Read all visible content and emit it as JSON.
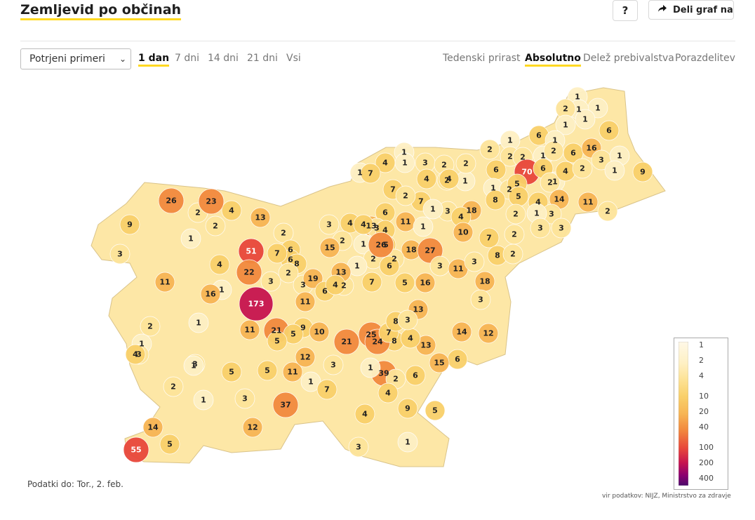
{
  "header": {
    "title": "Zemljevid po občinah",
    "help_label": "?",
    "share_label": "Deli graf na"
  },
  "controls": {
    "select_value": "Potrjeni primeri",
    "period_tabs": [
      {
        "label": "1 dan",
        "active": true
      },
      {
        "label": "7 dni",
        "active": false
      },
      {
        "label": "14 dni",
        "active": false
      },
      {
        "label": "21 dni",
        "active": false
      },
      {
        "label": "Vsi",
        "active": false
      }
    ],
    "mode_tabs": [
      {
        "label": "Tedenski prirast",
        "active": false
      },
      {
        "label": "Absolutno",
        "active": true
      },
      {
        "label": "Delež prebivalstva",
        "active": false
      },
      {
        "label": "Porazdelitev",
        "active": false
      }
    ]
  },
  "map": {
    "values": [
      1,
      1,
      1,
      2,
      1,
      1,
      2,
      1,
      6,
      1,
      2,
      2,
      1,
      2,
      6,
      6,
      16,
      3,
      1,
      1,
      9,
      1,
      1,
      3,
      2,
      4,
      2,
      4,
      1,
      4,
      2,
      6,
      70,
      6,
      1,
      2,
      4,
      2,
      1,
      7,
      7,
      7,
      2,
      1,
      2,
      5,
      5,
      8,
      4,
      14,
      2,
      3,
      1,
      11,
      2,
      3,
      3,
      3,
      4,
      13,
      18,
      3,
      4,
      6,
      26,
      2,
      2,
      4,
      23,
      13,
      2,
      1,
      3,
      3,
      4,
      4,
      11,
      1,
      18,
      10,
      7,
      2,
      9,
      2,
      1,
      5,
      2,
      2,
      27,
      3,
      1,
      13,
      8,
      2,
      6,
      51,
      15,
      6,
      26,
      11,
      3,
      18,
      22,
      7,
      8,
      2,
      3,
      11,
      4,
      1,
      6,
      19,
      3,
      2,
      6,
      13,
      5,
      1,
      11,
      173,
      16,
      7,
      3,
      13,
      8,
      4,
      2,
      1,
      25,
      9,
      11,
      10,
      21,
      24,
      12,
      14,
      21,
      39,
      4,
      7,
      5,
      8,
      5,
      3,
      1,
      3,
      4,
      5,
      5,
      11,
      12,
      3,
      3,
      1,
      1,
      2,
      6,
      1,
      16,
      7,
      4,
      9,
      2,
      1,
      3,
      37,
      6,
      5,
      15,
      12,
      4,
      1,
      3,
      14,
      55,
      5
    ],
    "legend_ticks": [
      "1",
      "2",
      "4",
      "10",
      "20",
      "40",
      "100",
      "200",
      "400"
    ],
    "color_scale": [
      "#fff8e7",
      "#fef0c4",
      "#fde49a",
      "#f9d06a",
      "#f7b554",
      "#f28a3e",
      "#e8473b",
      "#c7144f",
      "#8a0070",
      "#4a0a6a"
    ]
  },
  "footer": {
    "date_note": "Podatki do: Tor., 2. feb.",
    "source": "vir podatkov: NIJZ, Ministrstvo za zdravje"
  }
}
